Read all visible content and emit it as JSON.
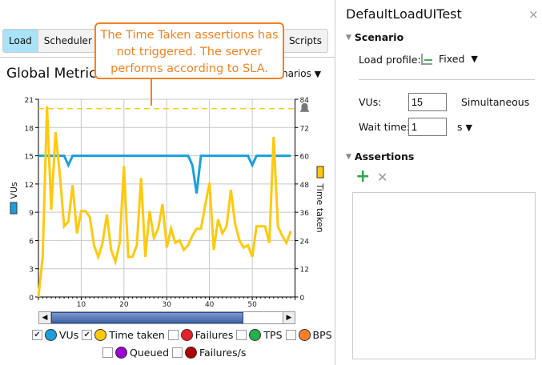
{
  "tabs": [
    {
      "label": "Load",
      "active": true
    },
    {
      "label": "Scheduler"
    },
    {
      "label": "Scripts"
    }
  ],
  "global_metrics": {
    "title": "Global Metrics",
    "scenarios_label": "narios"
  },
  "callout": {
    "text": "The Time Taken assertions has not triggered. The server performs according to SLA.",
    "color": "#f5821f"
  },
  "chart_data": {
    "type": "line",
    "x": [
      0,
      1,
      2,
      3,
      4,
      5,
      6,
      7,
      8,
      9,
      10,
      11,
      12,
      13,
      14,
      15,
      16,
      17,
      18,
      19,
      20,
      21,
      22,
      23,
      24,
      25,
      26,
      27,
      28,
      29,
      30,
      31,
      32,
      33,
      34,
      35,
      36,
      37,
      38,
      39,
      40,
      41,
      42,
      43,
      44,
      45,
      46,
      47,
      48,
      49,
      50,
      51,
      52,
      53,
      54,
      55,
      56,
      57,
      58,
      59
    ],
    "xlim": [
      0,
      60
    ],
    "xticks": [
      "10",
      "20",
      "30",
      "40",
      "50"
    ],
    "left_axis": {
      "label": "VUs",
      "ylim": [
        0,
        21
      ],
      "ticks": [
        "0",
        "3",
        "6",
        "9",
        "12",
        "15",
        "18",
        "21"
      ]
    },
    "right_axis": {
      "label": "Time taken",
      "ylim": [
        0,
        84
      ],
      "ticks": [
        "0",
        "12",
        "24",
        "36",
        "48",
        "60",
        "72",
        "84"
      ]
    },
    "grid": true,
    "threshold": {
      "axis": "right",
      "value": 80,
      "style": "dashed",
      "color": "#f5c400"
    },
    "series": [
      {
        "name": "VUs",
        "axis": "left",
        "color": "#1a9fe0",
        "values": [
          15,
          15,
          15,
          15,
          15,
          15,
          15,
          14,
          15,
          15,
          15,
          15,
          15,
          15,
          15,
          15,
          15,
          15,
          15,
          15,
          15,
          15,
          15,
          15,
          15,
          15,
          15,
          15,
          15,
          15,
          15,
          15,
          15,
          15,
          15,
          15,
          14,
          11,
          15,
          15,
          15,
          15,
          15,
          15,
          15,
          15,
          15,
          15,
          15,
          15,
          14,
          15,
          15,
          15,
          15,
          15,
          15,
          15,
          15,
          15
        ]
      },
      {
        "name": "Time taken",
        "axis": "right",
        "color": "#ffc90e",
        "values": [
          0,
          17,
          81,
          37,
          70,
          52,
          30,
          32,
          47.5,
          27,
          36.5,
          36.5,
          34,
          22,
          17,
          23,
          35,
          20,
          15,
          23,
          55.6,
          17,
          17,
          22,
          50.5,
          17,
          36.5,
          25,
          29,
          39.5,
          21,
          29,
          23,
          24,
          20,
          22,
          26,
          29,
          29,
          39,
          48.5,
          20,
          33,
          27,
          30,
          45.5,
          31,
          24,
          21,
          22,
          17,
          30,
          30,
          30,
          23,
          68,
          30,
          26,
          23,
          28
        ]
      }
    ]
  },
  "legend": [
    {
      "label": "VUs",
      "checked": true,
      "color": "#1a9fe0"
    },
    {
      "label": "Time taken",
      "checked": true,
      "color": "#ffc90e"
    },
    {
      "label": "Failures",
      "checked": false,
      "color": "#e8202a"
    },
    {
      "label": "TPS",
      "checked": false,
      "color": "#22b14c"
    },
    {
      "label": "BPS",
      "checked": false,
      "color": "#ff7f27"
    },
    {
      "label": "Queued",
      "checked": false,
      "color": "#9b00d3"
    },
    {
      "label": "Failures/s",
      "checked": false,
      "color": "#b10000"
    }
  ],
  "panel": {
    "title": "DefaultLoadUITest",
    "close": "×",
    "scenario": {
      "heading": "Scenario",
      "load_profile_label": "Load profile:",
      "load_profile_value": "Fixed",
      "vus_label": "VUs:",
      "vus_value": "15",
      "vus_mode": "Simultaneous",
      "wait_label": "Wait time:",
      "wait_value": "1",
      "wait_unit": "s"
    },
    "assertions": {
      "heading": "Assertions",
      "add": "+",
      "remove": "✕"
    }
  }
}
